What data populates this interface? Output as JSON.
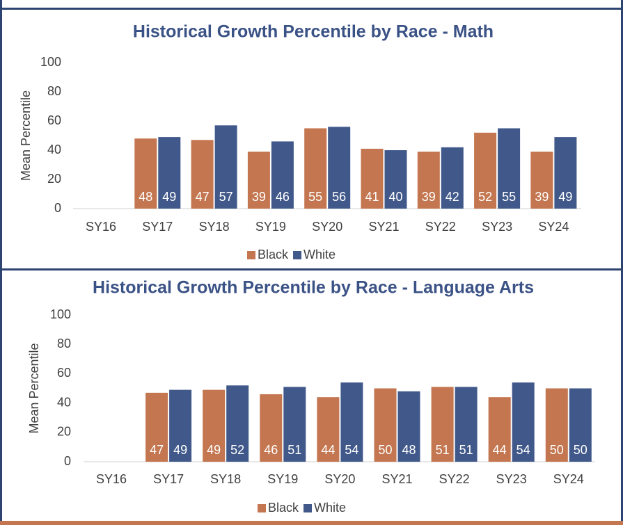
{
  "chart_data": [
    {
      "type": "bar",
      "title": "Historical Growth Percentile by Race - Math",
      "y_label": "Mean Percentile",
      "categories": [
        "SY16",
        "SY17",
        "SY18",
        "SY19",
        "SY20",
        "SY21",
        "SY22",
        "SY23",
        "SY24"
      ],
      "series": [
        {
          "name": "Black",
          "color": "#c3764f",
          "values": [
            null,
            48,
            47,
            39,
            55,
            41,
            39,
            52,
            39
          ]
        },
        {
          "name": "White",
          "color": "#41598a",
          "values": [
            null,
            49,
            57,
            46,
            56,
            40,
            42,
            55,
            49
          ]
        }
      ],
      "ylim": [
        0,
        100
      ],
      "yticks": [
        0,
        20,
        40,
        60,
        80,
        100
      ],
      "grid": false,
      "legend": "bottom"
    },
    {
      "type": "bar",
      "title": "Historical Growth Percentile by Race - Language Arts",
      "y_label": "Mean Percentile",
      "categories": [
        "SY16",
        "SY17",
        "SY18",
        "SY19",
        "SY20",
        "SY21",
        "SY22",
        "SY23",
        "SY24"
      ],
      "series": [
        {
          "name": "Black",
          "color": "#c3764f",
          "values": [
            null,
            47,
            49,
            46,
            44,
            50,
            51,
            44,
            50
          ]
        },
        {
          "name": "White",
          "color": "#41598a",
          "values": [
            null,
            49,
            52,
            51,
            54,
            48,
            51,
            54,
            50
          ]
        }
      ],
      "ylim": [
        0,
        100
      ],
      "yticks": [
        0,
        20,
        40,
        60,
        80,
        100
      ],
      "grid": false,
      "legend": "bottom"
    }
  ]
}
